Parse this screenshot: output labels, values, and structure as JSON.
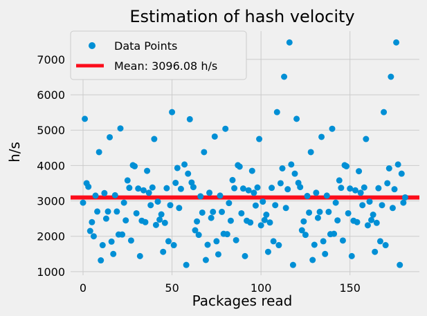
{
  "chart_data": {
    "type": "scatter",
    "title": "Estimation of hash velocity",
    "xlabel": "Packages read",
    "ylabel": "h/s",
    "xlim": [
      -7,
      189
    ],
    "ylim": [
      900,
      7800
    ],
    "xticks": [
      0,
      50,
      100,
      150
    ],
    "yticks": [
      1000,
      2000,
      3000,
      4000,
      5000,
      6000,
      7000
    ],
    "grid": true,
    "legend_position": "top-left",
    "colors": {
      "points": "#008fd5",
      "mean_line": "#fc0d1b",
      "background": "#f0f0f0",
      "grid": "#cbcbcb"
    },
    "legend": {
      "points_label": "Data Points",
      "mean_label": "Mean: 3096.08 h/s"
    },
    "mean": 3096.08,
    "series": [
      {
        "name": "Data Points",
        "x": [
          0,
          1,
          2,
          3,
          4,
          5,
          6,
          7,
          8,
          9,
          10,
          11,
          12,
          13,
          14,
          15,
          16,
          17,
          18,
          19,
          20,
          21,
          22,
          23,
          24,
          25,
          26,
          27,
          28,
          29,
          30,
          31,
          32,
          33,
          34,
          35,
          36,
          37,
          38,
          39,
          40,
          41,
          42,
          43,
          44,
          45,
          46,
          47,
          48,
          49,
          50,
          51,
          52,
          53,
          54,
          55,
          56,
          57,
          58,
          59,
          60,
          61,
          62,
          63,
          64,
          65,
          66,
          67,
          68,
          69,
          70,
          71,
          72,
          73,
          74,
          75,
          76,
          77,
          78,
          79,
          80,
          81,
          82,
          83,
          84,
          85,
          86,
          87,
          88,
          89,
          90,
          91,
          92,
          93,
          94,
          95,
          96,
          97,
          98,
          99,
          100,
          101,
          102,
          103,
          104,
          105,
          106,
          107,
          108,
          109,
          110,
          111,
          112,
          113,
          114,
          115,
          116,
          117,
          118,
          119,
          120,
          121,
          122,
          123,
          124,
          125,
          126,
          127,
          128,
          129,
          130,
          131,
          132,
          133,
          134,
          135,
          136,
          137,
          138,
          139,
          140,
          141,
          142,
          143,
          144,
          145,
          146,
          147,
          148,
          149,
          150,
          151,
          152,
          153,
          154,
          155,
          156,
          157,
          158,
          159,
          160,
          161,
          162,
          163,
          164,
          165,
          166,
          167,
          168,
          169,
          170,
          171,
          172,
          173,
          174,
          175,
          176,
          177,
          178,
          179,
          180,
          181
        ],
        "y": [
          2950,
          5320,
          3500,
          3400,
          2150,
          2400,
          2000,
          3150,
          2700,
          4380,
          1320,
          1750,
          3220,
          2500,
          2700,
          4800,
          1850,
          1500,
          3160,
          2700,
          2050,
          5050,
          2050,
          2950,
          2450,
          3580,
          3370,
          1880,
          4010,
          3980,
          2650,
          3350,
          1440,
          2440,
          3300,
          2400,
          3850,
          3230,
          2880,
          3380,
          4750,
          2320,
          2980,
          2470,
          2620,
          1560,
          2380,
          3360,
          1860,
          2880,
          5510,
          1750,
          3510,
          3930,
          2800,
          3340,
          7480,
          4030,
          1190,
          3770,
          5310,
          3520,
          3390,
          2170,
          2420,
          2040,
          3130,
          2670,
          4380,
          1330,
          1760,
          3230,
          2520,
          2690,
          4820,
          1860,
          1490,
          3150,
          2690,
          2070,
          5040,
          2060,
          2940,
          2440,
          3590,
          3360,
          1890,
          4010,
          3970,
          2650,
          3350,
          1440,
          2440,
          3300,
          2390,
          3850,
          3230,
          2870,
          3380,
          4750,
          2310,
          2980,
          2460,
          2610,
          1560,
          2390,
          3370,
          1860,
          2880,
          5510,
          1750,
          3500,
          3920,
          6510,
          2800,
          3330,
          7480,
          4030,
          1190,
          3770,
          5320,
          3510,
          3390,
          2170,
          2420,
          2040,
          3140,
          2670,
          4380,
          1330,
          1760,
          3230,
          2520,
          2690,
          4810,
          1860,
          1500,
          3150,
          2690,
          2060,
          5040,
          2070,
          2950,
          2450,
          3580,
          3370,
          1880,
          4010,
          3980,
          2650,
          3350,
          1440,
          2440,
          3300,
          2400,
          3840,
          3230,
          2880,
          3380,
          4750,
          2310,
          2980,
          2460,
          2610,
          1560,
          2380,
          3360,
          1860,
          2880,
          5510,
          1750,
          3500,
          3920,
          6510,
          2800,
          3330,
          7480,
          4030,
          1190,
          3770,
          2950,
          3100
        ]
      }
    ]
  }
}
